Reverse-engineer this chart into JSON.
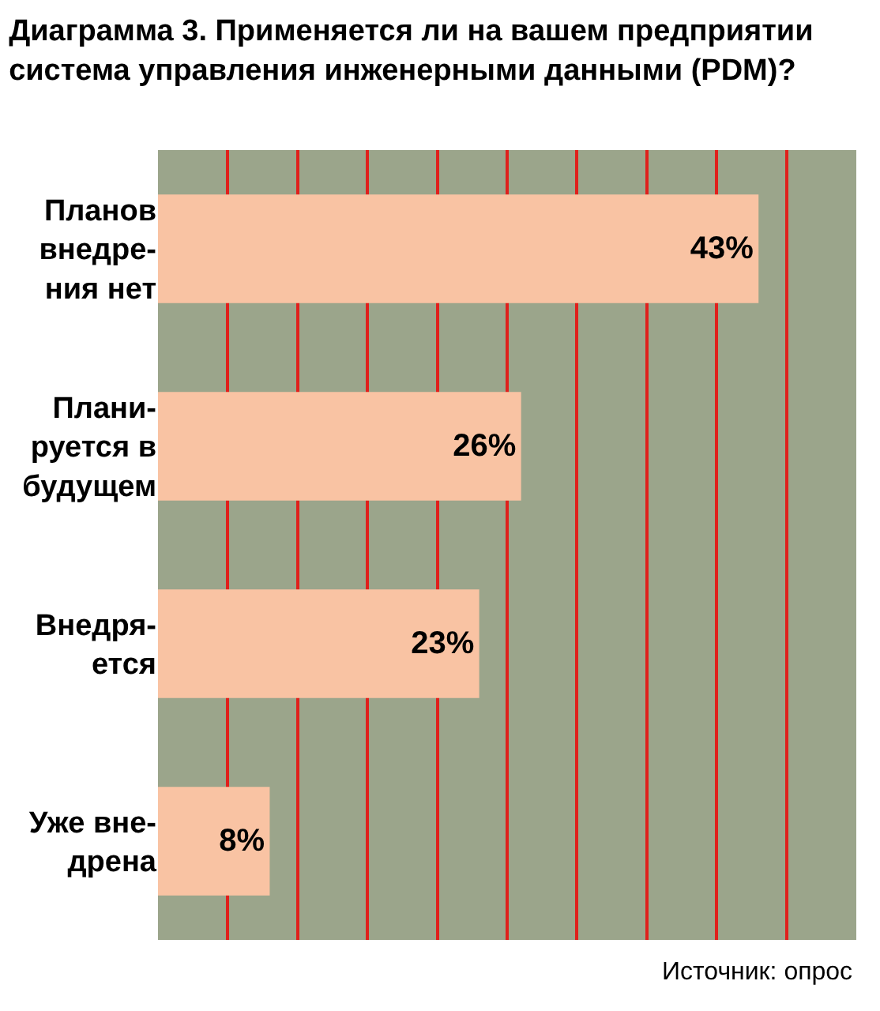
{
  "chart_data": {
    "type": "bar",
    "orientation": "horizontal",
    "title": "Диаграмма 3. Применяется ли на вашем предприятии система управления инженерными данными (PDM)?",
    "categories": [
      "Планов\nвнедре-\nния нет",
      "Плани-\nруется в\nбудущем",
      "Внедря-\nется",
      "Уже вне-\nдрена"
    ],
    "values": [
      43,
      26,
      23,
      8
    ],
    "color": "#f9c3a3",
    "xlim": [
      0,
      50
    ],
    "xticks": [
      {
        "value": 0,
        "label": null
      },
      {
        "value": 5,
        "label": null
      },
      {
        "value": 10,
        "label": null
      },
      {
        "value": 15,
        "label": null
      },
      {
        "value": 20,
        "label": null
      },
      {
        "value": 25,
        "label": null
      },
      {
        "value": 30,
        "label": null
      },
      {
        "value": 35,
        "label": null
      },
      {
        "value": 40,
        "label": null
      },
      {
        "value": 45,
        "label": null
      },
      {
        "value": 50,
        "label": null
      }
    ],
    "value_labels": [
      "43%",
      "26%",
      "23%",
      "8%"
    ],
    "grid": "x",
    "tick_labels": "y",
    "annotations": [
      "Источник: опрос"
    ]
  }
}
